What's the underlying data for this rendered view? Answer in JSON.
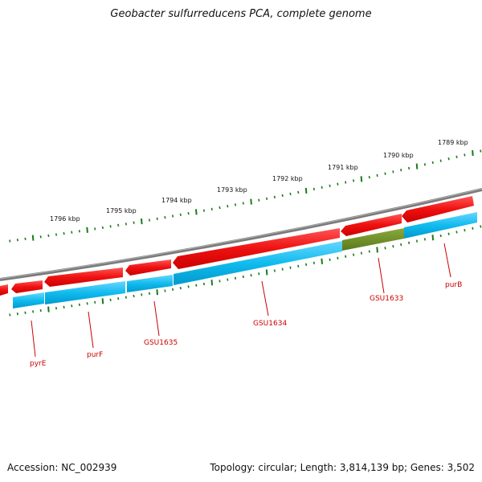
{
  "title": "Geobacter sulfurreducens PCA, complete genome",
  "footer": {
    "accession": "Accession: NC_002939",
    "summary": "Topology: circular; Length: 3,814,139 bp; Genes: 3,502"
  },
  "colors": {
    "backbone": "#7a7a7a",
    "forward_gene": "#ee1111",
    "reverse_gene": "#11bbee",
    "highlight_gene": "#6b8e23",
    "tick": "#1a7a1a",
    "label": "#cc0000"
  },
  "kbp_labels": [
    "1796 kbp",
    "1795 kbp",
    "1794 kbp",
    "1793 kbp",
    "1792 kbp",
    "1791 kbp",
    "1790 kbp",
    "1789 kbp"
  ],
  "gene_labels": [
    "pyrE",
    "purF",
    "GSU1635",
    "GSU1634",
    "GSU1633",
    "purB"
  ]
}
